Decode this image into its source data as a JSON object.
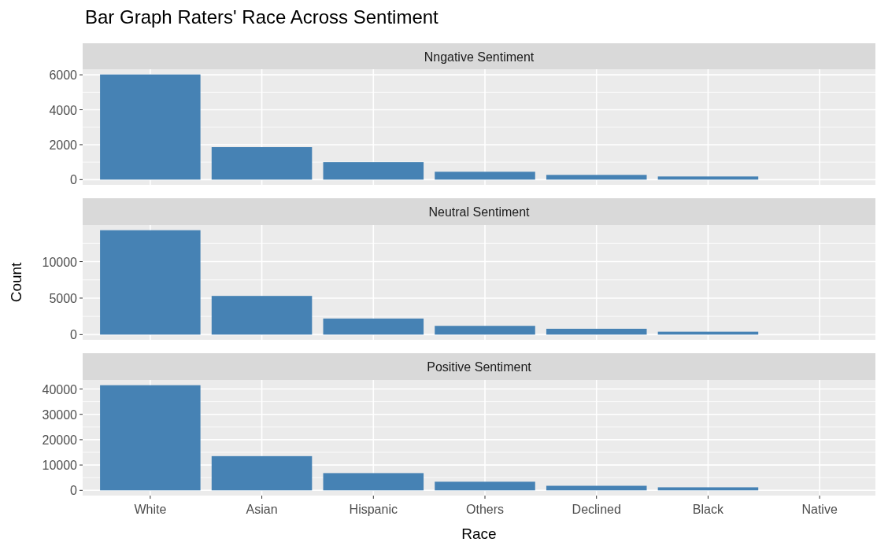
{
  "chart_data": [
    {
      "type": "bar",
      "title": "Bar Graph Raters' Race Across Sentiment",
      "subtitle": "Nngative Sentiment",
      "categories": [
        null,
        null,
        null,
        null,
        null,
        null,
        null
      ],
      "values": [
        6020,
        1860,
        1000,
        450,
        270,
        180,
        0
      ],
      "color": "#4682b4",
      "ylim": [
        -300,
        6320
      ],
      "yticks": [
        0,
        2000,
        4000,
        6000
      ],
      "grid": true,
      "tick_labels": "y"
    },
    {
      "type": "bar",
      "subtitle": "Neutral Sentiment",
      "ylabel": "Count",
      "categories": [
        null,
        null,
        null,
        null,
        null,
        null,
        null
      ],
      "values": [
        14300,
        5300,
        2200,
        1200,
        800,
        400,
        0
      ],
      "color": "#4682b4",
      "ylim": [
        -715,
        15015
      ],
      "yticks": [
        0,
        5000,
        10000
      ],
      "grid": true,
      "tick_labels": "y"
    },
    {
      "type": "bar",
      "subtitle": "Positive Sentiment",
      "xlabel": "Race",
      "categories": [
        "White",
        "Asian",
        "Hispanic",
        "Others",
        "Declined",
        "Black",
        "Native"
      ],
      "values": [
        41500,
        13500,
        6800,
        3400,
        1800,
        1200,
        0
      ],
      "color": "#4682b4",
      "ylim": [
        -2075,
        43575
      ],
      "yticks": [
        0,
        10000,
        20000,
        30000,
        40000
      ],
      "grid": true
    }
  ]
}
